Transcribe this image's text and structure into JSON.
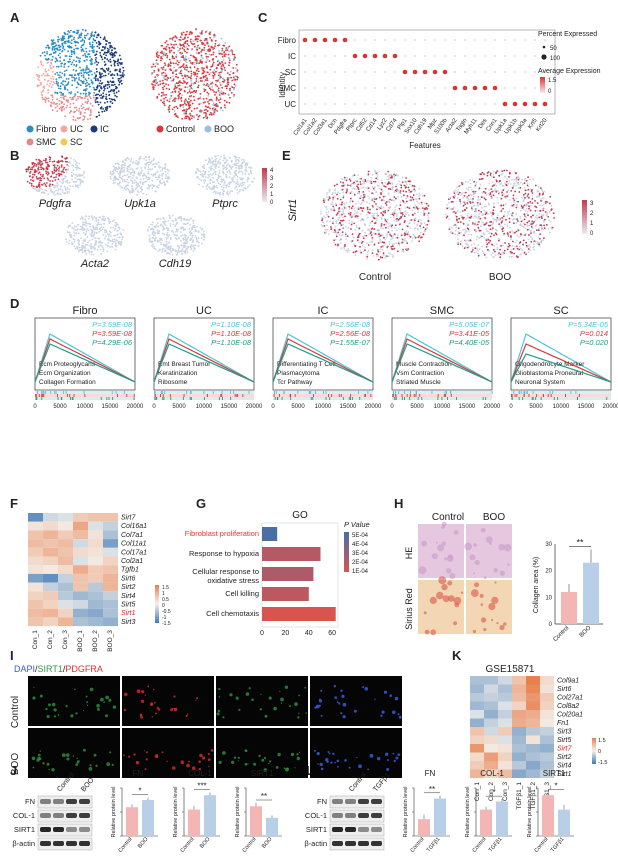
{
  "panels": {
    "A": "A",
    "B": "B",
    "C": "C",
    "D": "D",
    "E": "E",
    "F": "F",
    "G": "G",
    "H": "H",
    "I": "I",
    "J": "J",
    "K": "K",
    "L": "L"
  },
  "colors": {
    "fibro": "#2b8cc4",
    "uc": "#f3a6a0",
    "ic": "#1b3a7a",
    "smc": "#e8878a",
    "sc": "#f2c94c",
    "control": "#d8383b",
    "boo": "#9fbde0",
    "gsea1": "#4fc3d6",
    "gsea2": "#d23c3c",
    "gsea3": "#1f9e8a",
    "feature_hi": "#c23b4c",
    "feature_lo": "#c8d3e3",
    "heat_hi": "#e8804e",
    "heat_mid": "#f4f1ec",
    "heat_lo": "#3f78b5",
    "bar_ctrl": "#f4b6b4",
    "bar_boo": "#b9cfe8"
  },
  "panel_a": {
    "legend": [
      "Fibro",
      "UC",
      "IC",
      "SMC",
      "SC"
    ],
    "legend2": [
      "Control",
      "BOO"
    ]
  },
  "panel_b": {
    "genes": [
      "Pdgfra",
      "Upk1a",
      "Ptprc",
      "Acta2",
      "Cdh19"
    ],
    "scale": [
      "4",
      "3",
      "2",
      "1",
      "0"
    ]
  },
  "panel_c": {
    "ylabel": "Identity",
    "xlabel": "Features",
    "identities": [
      "Fibro",
      "IC",
      "SC",
      "SMC",
      "UC"
    ],
    "features": [
      "Col1a1",
      "Col1a2",
      "Col3a1",
      "Dcn",
      "Pdgfra",
      "Ptprc",
      "Cd52",
      "Cd14",
      "Lyz2",
      "Cd74",
      "Plp1",
      "Sox10",
      "Cdh19",
      "Mpz",
      "S100b",
      "Acta2",
      "Tagln",
      "Myh11",
      "Des",
      "Cnn1",
      "Upk1a",
      "Upk1b",
      "Upk3a",
      "Krt5",
      "Krt20"
    ],
    "size_title": "Percent Expressed",
    "size_labels": [
      "50",
      "100"
    ],
    "color_title": "Average Expression",
    "color_labels": [
      "1.5",
      "0"
    ]
  },
  "panel_d": {
    "cells": [
      {
        "title": "Fibro",
        "p": [
          "P=3.59E-08",
          "P=3.59E-08",
          "P=4.29E-06"
        ],
        "terms": [
          "Ecm Proteoglycans",
          "Ecm Organization",
          "Collagen Formation"
        ]
      },
      {
        "title": "UC",
        "p": [
          "P=1.10E-08",
          "P=1.10E-08",
          "P=1.10E-08"
        ],
        "terms": [
          "Emt Breast Tumor",
          "Keratinization",
          "Ribosome"
        ]
      },
      {
        "title": "IC",
        "p": [
          "P=2.56E-08",
          "P=2.56E-08",
          "P=1.55E-07"
        ],
        "terms": [
          "Differentiating T Cell",
          "Plasmacytoma",
          "Tcr Pathway"
        ]
      },
      {
        "title": "SMC",
        "p": [
          "P=5.05E-07",
          "P=3.41E-05",
          "P=4.40E-05"
        ],
        "terms": [
          "Muscle Contraction",
          "Vsm Contraction",
          "Striated Muscle"
        ]
      },
      {
        "title": "SC",
        "p": [
          "P=5.34E-05",
          "P=0.014",
          "P=0.020"
        ],
        "terms": [
          "Oligodendrocyte Marker",
          "Glioblastoma Proneural",
          "Neuronal System"
        ]
      }
    ],
    "ticks": [
      "0",
      "5000",
      "10000",
      "15000",
      "20000"
    ]
  },
  "panel_e": {
    "gene": "Sirt1",
    "groups": [
      "Control",
      "BOO"
    ],
    "scale": [
      "3",
      "2",
      "1",
      "0"
    ]
  },
  "panel_f": {
    "genes": [
      "Sirt7",
      "Col16a1",
      "Col7a1",
      "Col11a1",
      "Col17a1",
      "Col2a1",
      "Tgfb1",
      "Sirt6",
      "Sirt2",
      "Sirt4",
      "Sirt5",
      "Sirt1",
      "Sirt3"
    ],
    "highlight": "Sirt1",
    "samples": [
      "Con_1",
      "Con_2",
      "Con_3",
      "BOO_1",
      "BOO_2",
      "BOO_3"
    ],
    "scale": [
      "1.5",
      "1",
      "0.5",
      "0",
      "-0.5",
      "-1",
      "-1.5"
    ],
    "matrix": [
      [
        -1.2,
        -0.3,
        -0.2,
        0.5,
        0.6,
        0.6
      ],
      [
        0.2,
        0.3,
        0.1,
        1.0,
        -0.2,
        -0.4
      ],
      [
        0.6,
        0.8,
        0.5,
        0.7,
        0.2,
        -0.6
      ],
      [
        0.7,
        0.6,
        0.7,
        -0.3,
        0.3,
        -1.0
      ],
      [
        0.5,
        0.8,
        0.6,
        0.3,
        0.2,
        -0.2
      ],
      [
        0.3,
        0.4,
        0.7,
        -0.2,
        0.1,
        0.4
      ],
      [
        0.2,
        0.1,
        0.3,
        0.9,
        0.5,
        0.6
      ],
      [
        -1.0,
        -1.2,
        -0.4,
        0.6,
        0.5,
        0.8
      ],
      [
        0.2,
        -0.4,
        -0.6,
        0.6,
        -0.5,
        0.8
      ],
      [
        0.4,
        0.5,
        -0.5,
        -0.7,
        -0.6,
        -0.4
      ],
      [
        0.6,
        0.4,
        -0.2,
        -0.3,
        -0.7,
        -0.6
      ],
      [
        0.7,
        0.8,
        0.4,
        -0.8,
        -0.9,
        -0.6
      ],
      [
        0.6,
        0.4,
        0.8,
        -0.6,
        -0.7,
        -0.8
      ]
    ]
  },
  "panel_g": {
    "title": "GO",
    "legend_title": "P Value",
    "legend": [
      "5E-04",
      "4E-04",
      "3E-04",
      "2E-04",
      "1E-04"
    ],
    "ticks": [
      "0",
      "20",
      "40",
      "60"
    ],
    "terms": [
      "Fibroblast proliferation",
      "Response to hypoxia",
      "Cellular response to oxidative stress",
      "Cell killing",
      "Cell chemotaxis"
    ],
    "highlight": "Fibroblast proliferation"
  },
  "panel_h": {
    "groups": [
      "Control",
      "BOO"
    ],
    "rows": [
      "HE",
      "Sirius Red"
    ],
    "ylabel": "Collagen area (%)",
    "ticks": [
      "0",
      "10",
      "20",
      "30"
    ],
    "sig": "**",
    "categories": [
      "Control",
      "BOO"
    ]
  },
  "panel_i": {
    "stain_dapi": "DAPI",
    "stain_sirt1": "SIRT1",
    "stain_pdgfra": "PDGFRA",
    "rows": [
      "Control",
      "BOO"
    ]
  },
  "panel_j": {
    "lanes": [
      "Control",
      "BOO"
    ],
    "blots": [
      "FN",
      "COL-1",
      "SIRT1",
      "β-actin"
    ]
  },
  "panel_k": {
    "title": "GSE15871",
    "genes": [
      "Col9a1",
      "Sirt6",
      "Col27a1",
      "Col8a2",
      "Col20a1",
      "Fn1",
      "Sirt3",
      "Sirt5",
      "Sirt7",
      "Sirt2",
      "Sirt4",
      "Sirt1"
    ],
    "highlight": "Sirt7",
    "samples": [
      "Con_1",
      "Con_2",
      "Con_3",
      "TGFβ1_1",
      "TGFβ1_2",
      "TGFβ1_3"
    ],
    "scale": [
      "1.5",
      "0",
      "-1.5"
    ],
    "matrix": [
      [
        -0.6,
        -0.6,
        -0.3,
        0.6,
        1.5,
        0.3
      ],
      [
        -0.7,
        -0.3,
        -0.6,
        0.8,
        1.4,
        0.2
      ],
      [
        -0.5,
        -0.4,
        -0.5,
        0.7,
        1.2,
        0.5
      ],
      [
        -0.7,
        -0.6,
        -0.2,
        0.4,
        1.3,
        0.4
      ],
      [
        -0.2,
        -0.8,
        -0.4,
        1.0,
        0.9,
        0.2
      ],
      [
        -0.8,
        -0.4,
        -0.2,
        0.9,
        0.8,
        0.1
      ],
      [
        0.6,
        -0.3,
        0.5,
        -0.8,
        -0.5,
        -0.4
      ],
      [
        0.4,
        0.3,
        -0.2,
        -0.7,
        0.2,
        -0.6
      ],
      [
        1.2,
        0.1,
        0.2,
        -0.6,
        -0.7,
        -0.8
      ],
      [
        0.3,
        1.1,
        0.4,
        -0.8,
        -0.6,
        -0.5
      ],
      [
        0.5,
        0.9,
        0.2,
        -0.5,
        -0.9,
        -0.6
      ],
      [
        0.8,
        0.4,
        0.7,
        -0.9,
        -0.7,
        -0.4
      ]
    ]
  },
  "panel_l": {
    "lanes": [
      "Control",
      "TGFβ1"
    ],
    "blots": [
      "FN",
      "COL-1",
      "SIRT1",
      "β-actin"
    ]
  },
  "chart_data": [
    {
      "type": "bar",
      "title": "GO",
      "xlabel": "",
      "ylabel": "",
      "categories": [
        "Fibroblast proliferation",
        "Response to hypoxia",
        "Cellular response to oxidative stress",
        "Cell killing",
        "Cell chemotaxis"
      ],
      "values": [
        13,
        50,
        44,
        40,
        63
      ],
      "pvalue": [
        0.0005,
        0.0002,
        0.00022,
        0.00018,
        0.0001
      ],
      "xlim": [
        0,
        65
      ]
    },
    {
      "type": "bar",
      "title": "",
      "ylabel": "Collagen area (%)",
      "categories": [
        "Control",
        "BOO"
      ],
      "values": [
        12,
        23
      ],
      "errors": [
        3,
        5
      ],
      "ylim": [
        0,
        30
      ],
      "sig": "**"
    },
    {
      "type": "bar",
      "title": "FN",
      "ylabel": "Relative protein level",
      "categories": [
        "Control",
        "BOO"
      ],
      "values": [
        0.6,
        0.75
      ],
      "errors": [
        0.06,
        0.05
      ],
      "ylim": [
        0,
        1.0
      ],
      "sig": "*"
    },
    {
      "type": "bar",
      "title": "COL-1",
      "ylabel": "Relative protein level",
      "categories": [
        "Control",
        "BOO"
      ],
      "values": [
        0.55,
        0.85
      ],
      "errors": [
        0.08,
        0.06
      ],
      "ylim": [
        0,
        1.0
      ],
      "sig": "***"
    },
    {
      "type": "bar",
      "title": "SIRT1",
      "ylabel": "Relative protein level",
      "categories": [
        "Control",
        "BOO"
      ],
      "values": [
        0.62,
        0.38
      ],
      "errors": [
        0.07,
        0.05
      ],
      "ylim": [
        0,
        1.0
      ],
      "sig": "**"
    },
    {
      "type": "bar",
      "title": "FN",
      "ylabel": "Relative protein level",
      "categories": [
        "Control",
        "TGFβ1"
      ],
      "values": [
        0.35,
        0.78
      ],
      "errors": [
        0.1,
        0.06
      ],
      "ylim": [
        0,
        1.0
      ],
      "sig": "**"
    },
    {
      "type": "bar",
      "title": "COL-1",
      "ylabel": "Relative protein level",
      "categories": [
        "Control",
        "TGFβ1"
      ],
      "values": [
        0.55,
        0.72
      ],
      "errors": [
        0.06,
        0.05
      ],
      "ylim": [
        0,
        1.0
      ],
      "sig": "*"
    },
    {
      "type": "bar",
      "title": "SIRT1",
      "ylabel": "Relative protein level",
      "categories": [
        "Control",
        "TGFβ1"
      ],
      "values": [
        0.85,
        0.55
      ],
      "errors": [
        0.06,
        0.1
      ],
      "ylim": [
        0,
        1.0
      ],
      "sig": "*"
    }
  ]
}
